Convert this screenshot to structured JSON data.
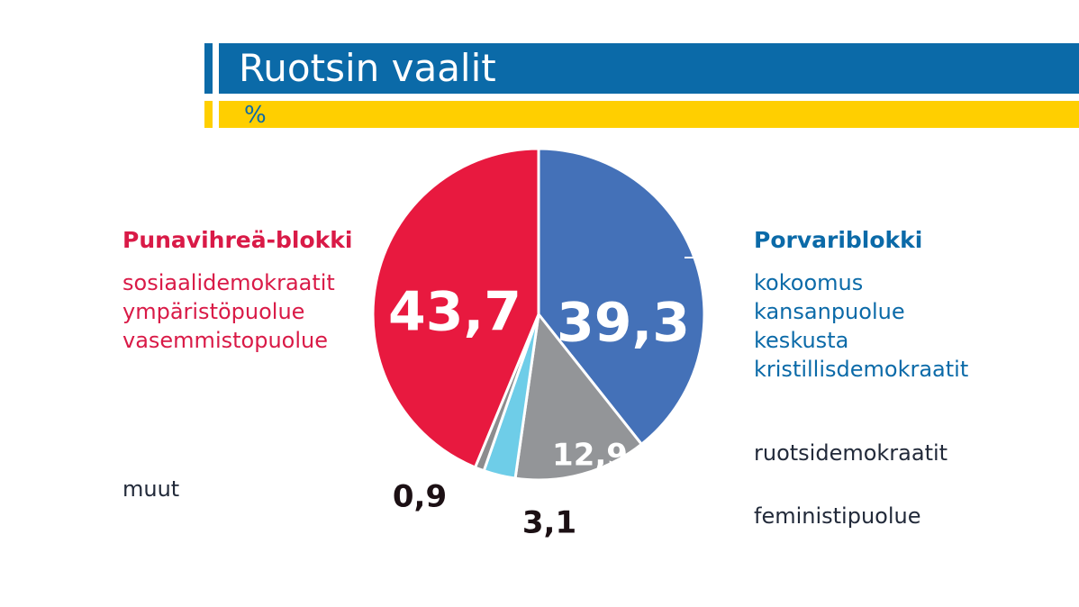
{
  "header": {
    "title": "Ruotsin vaalit",
    "subtitle": "%"
  },
  "colors": {
    "title_blue": "#0b6aa8",
    "subtitle_yellow": "#ffcf00",
    "red": "#e8193f",
    "blue": "#4471b8",
    "gray": "#939598",
    "cyan": "#6ecde8",
    "dark_gray": "#8c8c8e",
    "value_dark": "#1c1014"
  },
  "legend": {
    "left_block": {
      "heading": "Punavihreä-blokki",
      "parties": [
        "sosiaalidemokraatit",
        "ympäristöpuolue",
        "vasemmistopuolue"
      ]
    },
    "right_block": {
      "heading": "Porvariblokki",
      "parties": [
        "kokoomus",
        "kansanpuolue",
        "keskusta",
        "kristillisdemokraatit"
      ]
    },
    "others": {
      "muut": "muut",
      "ruotsidemokraatit": "ruotsidemokraatit",
      "feministipuolue": "feministipuolue"
    }
  },
  "chart_data": {
    "type": "pie",
    "title": "Ruotsin vaalit",
    "subtitle": "%",
    "slices": [
      {
        "label": "Porvariblokki",
        "value": 39.3,
        "display": "39,3",
        "color": "#4471b8"
      },
      {
        "label": "ruotsidemokraatit",
        "value": 12.9,
        "display": "12,9",
        "color": "#939598"
      },
      {
        "label": "feministipuolue",
        "value": 3.1,
        "display": "3,1",
        "color": "#6ecde8"
      },
      {
        "label": "muut",
        "value": 0.9,
        "display": "0,9",
        "color": "#8c8c8e"
      },
      {
        "label": "Punavihreä-blokki",
        "value": 43.7,
        "display": "43,7",
        "color": "#e8193f"
      }
    ]
  }
}
